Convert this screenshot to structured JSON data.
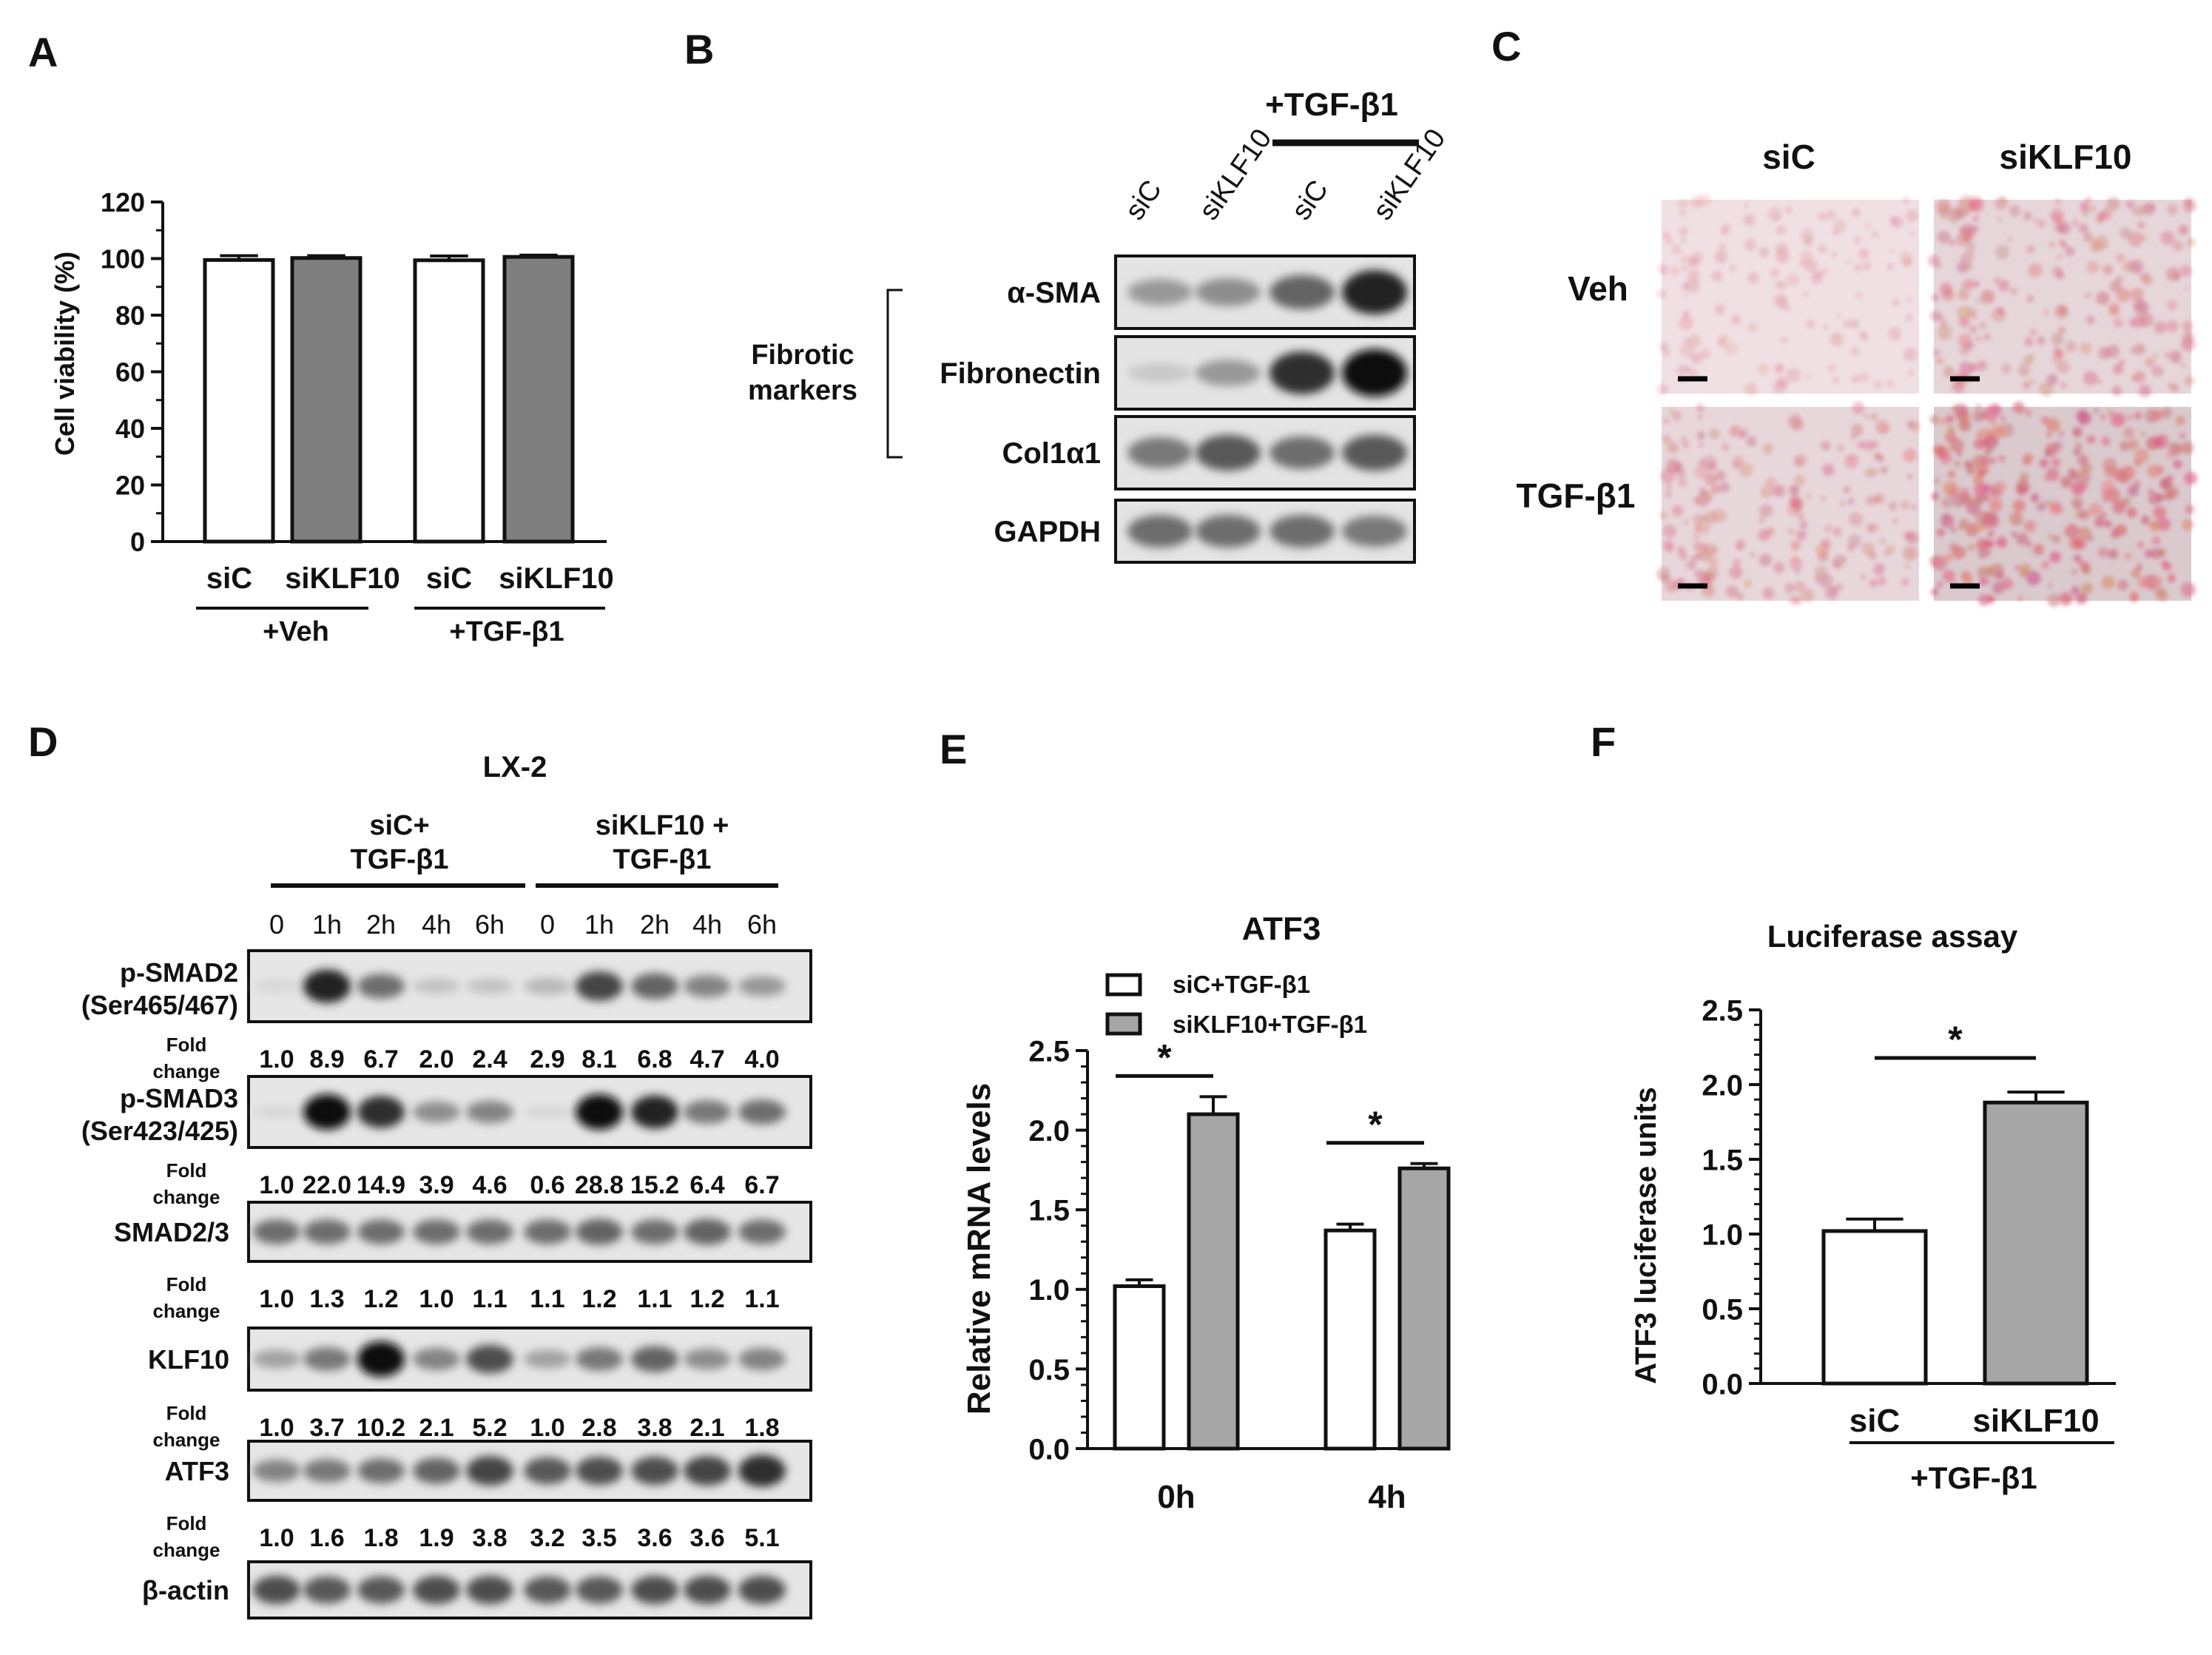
{
  "panels": {
    "A": {
      "letter": "A",
      "chart_data": {
        "type": "bar",
        "categories": [
          "siC",
          "siKLF10",
          "siC",
          "siKLF10"
        ],
        "values": [
          99.5,
          100.2,
          99.4,
          100.6
        ],
        "errors": [
          1.5,
          0.8,
          1.5,
          0.6
        ],
        "fills": [
          "#ffffff",
          "#7f7f7f",
          "#ffffff",
          "#7f7f7f"
        ],
        "groups": [
          "+Veh",
          "+TGF-β1"
        ],
        "ylabel": "Cell viability (%)",
        "ylim": [
          0,
          120
        ],
        "yticks": [
          "0",
          "20",
          "40",
          "60",
          "80",
          "100",
          "120"
        ]
      }
    },
    "B": {
      "letter": "B",
      "treatment": "+TGF-β1",
      "lanes": [
        "siC",
        "siKLF10",
        "siC",
        "siKLF10"
      ],
      "bracket_label": [
        "Fibrotic",
        "markers"
      ],
      "blots": [
        {
          "name": "α-SMA",
          "intensity": [
            0.35,
            0.4,
            0.6,
            0.9
          ]
        },
        {
          "name": "Fibronectin",
          "intensity": [
            0.12,
            0.35,
            0.85,
            1.0
          ]
        },
        {
          "name": "Col1α1",
          "intensity": [
            0.5,
            0.65,
            0.55,
            0.65
          ]
        },
        {
          "name": "GAPDH",
          "intensity": [
            0.55,
            0.55,
            0.55,
            0.5
          ]
        }
      ]
    },
    "C": {
      "letter": "C",
      "columns": [
        "siC",
        "siKLF10"
      ],
      "rows": [
        "Veh",
        "TGF-β1"
      ],
      "stain_level": [
        [
          0.2,
          0.55
        ],
        [
          0.5,
          0.95
        ]
      ]
    },
    "D": {
      "letter": "D",
      "cell_line": "LX-2",
      "groups": [
        "siC+\nTGF-β1",
        "siKLF10 +\nTGF-β1"
      ],
      "group_lines": [
        [
          "siC+",
          "TGF-β1"
        ],
        [
          "siKLF10 +",
          "TGF-β1"
        ]
      ],
      "timepoints": [
        "0",
        "1h",
        "2h",
        "4h",
        "6h",
        "0",
        "1h",
        "2h",
        "4h",
        "6h"
      ],
      "fold_label": [
        "Fold",
        "change"
      ],
      "blots": [
        {
          "name": [
            "p-SMAD2",
            "(Ser465/467)"
          ],
          "fold": [
            "1.0",
            "8.9",
            "6.7",
            "2.0",
            "2.4",
            "2.9",
            "8.1",
            "6.8",
            "4.7",
            "4.0"
          ]
        },
        {
          "name": [
            "p-SMAD3",
            "(Ser423/425)"
          ],
          "fold": [
            "1.0",
            "22.0",
            "14.9",
            "3.9",
            "4.6",
            "0.6",
            "28.8",
            "15.2",
            "6.4",
            "6.7"
          ]
        },
        {
          "name": [
            "SMAD2/3"
          ],
          "fold": [
            "1.0",
            "1.3",
            "1.2",
            "1.0",
            "1.1",
            "1.1",
            "1.2",
            "1.1",
            "1.2",
            "1.1"
          ]
        },
        {
          "name": [
            "KLF10"
          ],
          "fold": [
            "1.0",
            "3.7",
            "10.2",
            "2.1",
            "5.2",
            "1.0",
            "2.8",
            "3.8",
            "2.1",
            "1.8"
          ]
        },
        {
          "name": [
            "ATF3"
          ],
          "fold": [
            "1.0",
            "1.6",
            "1.8",
            "1.9",
            "3.8",
            "3.2",
            "3.5",
            "3.6",
            "3.6",
            "5.1"
          ]
        },
        {
          "name": [
            "β-actin"
          ],
          "fold": null
        }
      ]
    },
    "E": {
      "letter": "E",
      "chart_data": {
        "type": "bar",
        "title": "ATF3",
        "categories": [
          "0h",
          "4h"
        ],
        "series": [
          {
            "name": "siC+TGF-β1",
            "values": [
              1.02,
              1.37
            ],
            "errors": [
              0.04,
              0.04
            ],
            "color": "#ffffff"
          },
          {
            "name": "siKLF10+TGF-β1",
            "values": [
              2.1,
              1.76
            ],
            "errors": [
              0.11,
              0.03
            ],
            "color": "#a6a6a6"
          }
        ],
        "ylabel": "Relative mRNA levels",
        "ylim": [
          0,
          2.5
        ],
        "yticks": [
          "0.0",
          "0.5",
          "1.0",
          "1.5",
          "2.0",
          "2.5"
        ],
        "significance": [
          "*",
          "*"
        ]
      }
    },
    "F": {
      "letter": "F",
      "chart_data": {
        "type": "bar",
        "title": "Luciferase assay",
        "categories": [
          "siC",
          "siKLF10"
        ],
        "values": [
          1.02,
          1.88
        ],
        "errors": [
          0.08,
          0.07
        ],
        "fills": [
          "#ffffff",
          "#a6a6a6"
        ],
        "group": "+TGF-β1",
        "ylabel": "ATF3 luciferase units",
        "ylim": [
          0,
          2.5
        ],
        "yticks": [
          "0.0",
          "0.5",
          "1.0",
          "1.5",
          "2.0",
          "2.5"
        ],
        "significance": "*"
      }
    }
  }
}
